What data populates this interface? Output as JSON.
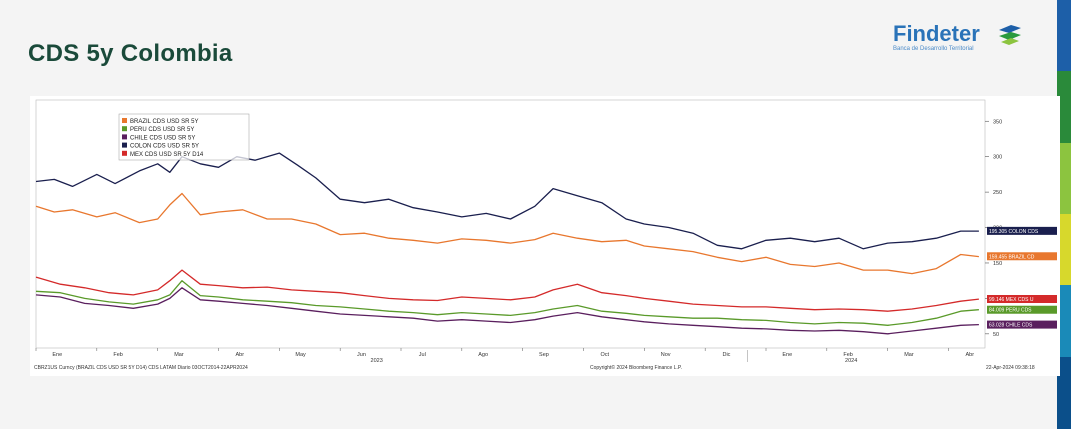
{
  "slide": {
    "title": "CDS 5y Colombia",
    "logo_name": "Findeter",
    "logo_subtitle": "Banca de Desarrollo Territorial",
    "accent_colors": [
      "#1d5fa8",
      "#2a8a3a",
      "#8cc43f",
      "#d7d82c",
      "#1a8ab8",
      "#0b4f8a"
    ]
  },
  "chart_data": {
    "type": "line",
    "title": "",
    "xlabel": "",
    "ylabel": "",
    "ylim": [
      30,
      380
    ],
    "yticks": [
      50,
      100,
      150,
      200,
      250,
      300,
      350
    ],
    "months": [
      "Ene",
      "Feb",
      "Mar",
      "Abr",
      "May",
      "Jun",
      "Jul",
      "Ago",
      "Sep",
      "Oct",
      "Nov",
      "Dic",
      "Ene",
      "Feb",
      "Mar",
      "Abr"
    ],
    "years": [
      "2023",
      "2024"
    ],
    "x_range": [
      0,
      15.6
    ],
    "grid": false,
    "legend_position": "top-left",
    "series": [
      {
        "name": "BRAZIL CDS USD SR 5Y",
        "color": "#e8772e",
        "end_label": "159.455 BRAZIL CD",
        "end_value": 159.455,
        "x": [
          0,
          0.3,
          0.6,
          1,
          1.3,
          1.7,
          2,
          2.2,
          2.4,
          2.7,
          3,
          3.4,
          3.8,
          4.2,
          4.6,
          5,
          5.4,
          5.8,
          6.2,
          6.6,
          7,
          7.4,
          7.8,
          8.2,
          8.5,
          8.9,
          9.3,
          9.7,
          10,
          10.4,
          10.8,
          11.2,
          11.6,
          12,
          12.4,
          12.8,
          13.2,
          13.6,
          14,
          14.4,
          14.8,
          15.2,
          15.5
        ],
        "y": [
          230,
          222,
          225,
          215,
          221,
          207,
          212,
          232,
          248,
          218,
          222,
          225,
          212,
          212,
          205,
          190,
          192,
          185,
          182,
          178,
          184,
          182,
          178,
          183,
          192,
          185,
          180,
          182,
          174,
          170,
          166,
          158,
          152,
          158,
          148,
          145,
          150,
          140,
          140,
          135,
          142,
          162,
          159
        ]
      },
      {
        "name": "PERU CDS USD SR 5Y",
        "color": "#5a9a2a",
        "end_label": "84.009 PERU CDS",
        "end_value": 84.009,
        "x": [
          0,
          0.4,
          0.8,
          1.2,
          1.6,
          2,
          2.2,
          2.4,
          2.7,
          3,
          3.4,
          3.8,
          4.2,
          4.6,
          5,
          5.4,
          5.8,
          6.2,
          6.6,
          7,
          7.4,
          7.8,
          8.2,
          8.5,
          8.9,
          9.3,
          9.7,
          10,
          10.4,
          10.8,
          11.2,
          11.6,
          12,
          12.4,
          12.8,
          13.2,
          13.6,
          14,
          14.4,
          14.8,
          15.2,
          15.5
        ],
        "y": [
          110,
          108,
          100,
          95,
          92,
          98,
          105,
          125,
          104,
          102,
          98,
          96,
          94,
          90,
          88,
          85,
          82,
          80,
          77,
          80,
          78,
          76,
          80,
          85,
          90,
          82,
          79,
          76,
          74,
          72,
          72,
          70,
          69,
          66,
          64,
          66,
          65,
          62,
          66,
          72,
          82,
          84
        ]
      },
      {
        "name": "CHILE CDS USD SR 5Y",
        "color": "#5a1f5e",
        "end_label": "63.028 CHILE CDS",
        "end_value": 63.028,
        "x": [
          0,
          0.4,
          0.8,
          1.2,
          1.6,
          2,
          2.2,
          2.4,
          2.7,
          3,
          3.4,
          3.8,
          4.2,
          4.6,
          5,
          5.4,
          5.8,
          6.2,
          6.6,
          7,
          7.4,
          7.8,
          8.2,
          8.5,
          8.9,
          9.3,
          9.7,
          10,
          10.4,
          10.8,
          11.2,
          11.6,
          12,
          12.4,
          12.8,
          13.2,
          13.6,
          14,
          14.4,
          14.8,
          15.2,
          15.5
        ],
        "y": [
          105,
          102,
          93,
          90,
          86,
          92,
          100,
          115,
          98,
          96,
          93,
          90,
          86,
          82,
          78,
          76,
          74,
          72,
          68,
          70,
          68,
          66,
          70,
          75,
          80,
          74,
          70,
          67,
          64,
          62,
          60,
          58,
          57,
          55,
          54,
          55,
          53,
          50,
          54,
          58,
          62,
          63
        ]
      },
      {
        "name": "COLON CDS USD SR 5Y",
        "color": "#1a1f4e",
        "end_label": "195.305 COLON CDS",
        "end_value": 195.305,
        "x": [
          0,
          0.3,
          0.6,
          1,
          1.3,
          1.7,
          2,
          2.2,
          2.4,
          2.7,
          3,
          3.3,
          3.6,
          4,
          4.3,
          4.6,
          5,
          5.4,
          5.8,
          6.2,
          6.6,
          7,
          7.4,
          7.8,
          8.2,
          8.5,
          8.9,
          9.3,
          9.7,
          10,
          10.4,
          10.8,
          11.2,
          11.6,
          12,
          12.4,
          12.8,
          13.2,
          13.6,
          14,
          14.4,
          14.8,
          15.2,
          15.5
        ],
        "y": [
          265,
          268,
          258,
          275,
          262,
          280,
          290,
          278,
          300,
          290,
          285,
          300,
          295,
          305,
          288,
          270,
          240,
          235,
          240,
          228,
          222,
          215,
          220,
          212,
          230,
          255,
          245,
          235,
          212,
          205,
          200,
          192,
          175,
          170,
          182,
          185,
          180,
          185,
          170,
          178,
          180,
          185,
          195,
          195
        ]
      },
      {
        "name": "MEX CDS USD SR 5Y D14",
        "color": "#d42a2a",
        "end_label": "99.146 MEX CDS U",
        "end_value": 99.146,
        "x": [
          0,
          0.4,
          0.8,
          1.2,
          1.6,
          2,
          2.2,
          2.4,
          2.7,
          3,
          3.4,
          3.8,
          4.2,
          4.6,
          5,
          5.4,
          5.8,
          6.2,
          6.6,
          7,
          7.4,
          7.8,
          8.2,
          8.5,
          8.9,
          9.3,
          9.7,
          10,
          10.4,
          10.8,
          11.2,
          11.6,
          12,
          12.4,
          12.8,
          13.2,
          13.6,
          14,
          14.4,
          14.8,
          15.2,
          15.5
        ],
        "y": [
          130,
          120,
          115,
          108,
          105,
          112,
          125,
          140,
          120,
          118,
          115,
          116,
          112,
          110,
          108,
          104,
          100,
          98,
          97,
          102,
          100,
          98,
          102,
          112,
          120,
          108,
          104,
          100,
          96,
          92,
          90,
          88,
          88,
          86,
          84,
          85,
          84,
          82,
          85,
          90,
          96,
          99
        ]
      }
    ],
    "footer_left": "CBRZ1US Curncy (BRAZIL CDS USD SR 5Y D14) CDS LATAM  Diario 03OCT2014-22APR2024",
    "footer_center": "Copyright© 2024 Bloomberg Finance L.P.",
    "footer_right": "22-Apr-2024 09:38:18"
  }
}
